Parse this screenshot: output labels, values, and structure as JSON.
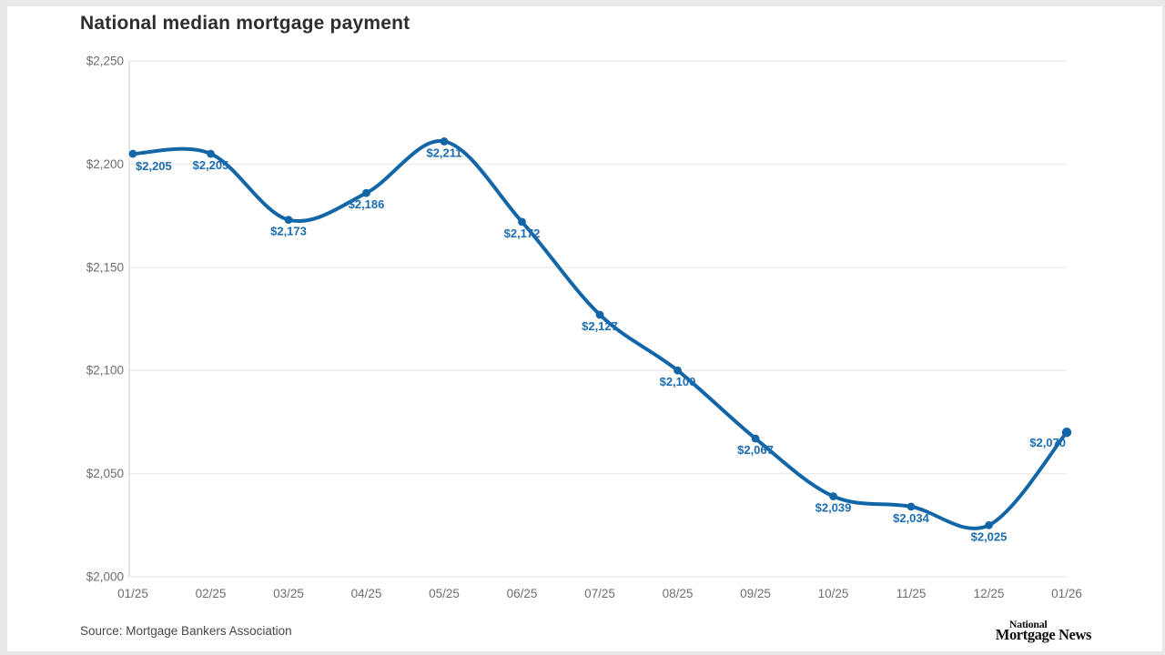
{
  "title": "National median mortgage payment",
  "footer": {
    "source": "Source: Mortgage Bankers Association",
    "logo_line1": "National",
    "logo_line2": "Mortgage News"
  },
  "colors": {
    "line": "#1266a8",
    "point": "#1266a8",
    "data_label": "#1b6daf",
    "grid": "#ececec",
    "axis": "#d9d9d9",
    "tick_text": "#6e6e6e",
    "title_text": "#2e2e2e",
    "source_text": "#474747",
    "logo_text": "#0e0e0e",
    "frame": "#e9e9e9",
    "background": "#ffffff"
  },
  "chart_data": {
    "type": "line",
    "title": "National median mortgage payment",
    "series_name": "National median mortgage payment",
    "categories": [
      "01/25",
      "02/25",
      "03/25",
      "04/25",
      "05/25",
      "06/25",
      "07/25",
      "08/25",
      "09/25",
      "10/25",
      "11/25",
      "12/25",
      "01/26"
    ],
    "values": [
      2205,
      2205,
      2173,
      2186,
      2211,
      2172,
      2127,
      2100,
      2067,
      2039,
      2034,
      2025,
      2070
    ],
    "value_prefix": "$",
    "y_ticks": [
      2000,
      2050,
      2100,
      2150,
      2200,
      2250
    ],
    "ylim": [
      2000,
      2250
    ],
    "xlabel": "",
    "ylabel": "",
    "grid": "horizontal",
    "legend": "none",
    "point_labels": true,
    "smooth": true,
    "source": "Source: Mortgage Bankers Association"
  }
}
